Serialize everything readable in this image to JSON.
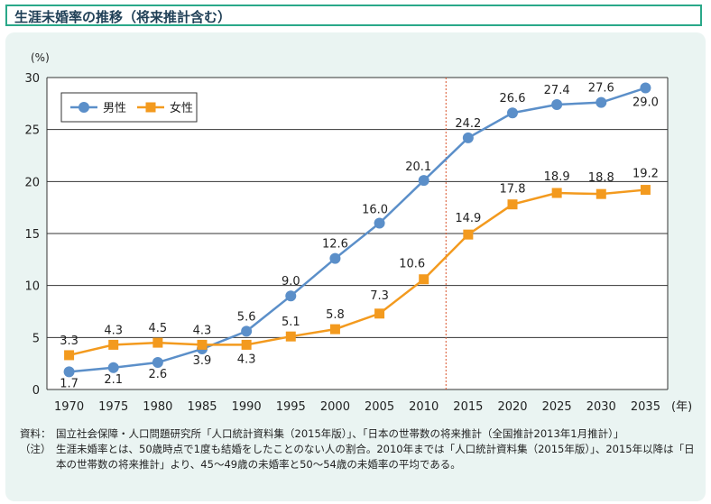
{
  "header": {
    "title": "生涯未婚率の推移（将来推計含む）"
  },
  "chart_data": {
    "type": "line",
    "title": "",
    "unit_label": "(%)",
    "x_unit": "(年)",
    "categories": [
      "1970",
      "1975",
      "1980",
      "1985",
      "1990",
      "1995",
      "2000",
      "2005",
      "2010",
      "2015",
      "2020",
      "2025",
      "2030",
      "2035"
    ],
    "ylim": [
      0,
      30
    ],
    "yticks": [
      0,
      5,
      10,
      15,
      20,
      25,
      30
    ],
    "grid": true,
    "legend_position": "top-left",
    "projection_start_after": "2010",
    "series": [
      {
        "name": "男性",
        "color": "#5b8fc9",
        "marker": "circle",
        "values": [
          1.7,
          2.1,
          2.6,
          3.9,
          5.6,
          9.0,
          12.6,
          16.0,
          20.1,
          24.2,
          26.6,
          27.4,
          27.6,
          29.0
        ],
        "labels": [
          "1.7",
          "2.1",
          "2.6",
          "3.9",
          "5.6",
          "9.0",
          "12.6",
          "16.0",
          "20.1",
          "24.2",
          "26.6",
          "27.4",
          "27.6",
          "29.0"
        ]
      },
      {
        "name": "女性",
        "color": "#f39a1e",
        "marker": "square",
        "values": [
          3.3,
          4.3,
          4.5,
          4.3,
          4.3,
          5.1,
          5.8,
          7.3,
          10.6,
          14.9,
          17.8,
          18.9,
          18.8,
          19.2
        ],
        "labels": [
          "3.3",
          "4.3",
          "4.5",
          "4.3",
          "4.3",
          "5.1",
          "5.8",
          "7.3",
          "10.6",
          "14.9",
          "17.8",
          "18.9",
          "18.8",
          "19.2"
        ]
      }
    ]
  },
  "notes": {
    "source_label": "資料：",
    "source_text": "国立社会保障・人口問題研究所「人口統計資料集（2015年版）」、「日本の世帯数の将来推計（全国推計2013年1月推計）」",
    "note_label": "（注）",
    "note_text": "生涯未婚率とは、50歳時点で1度も結婚をしたことのない人の割合。2010年までは「人口統計資料集（2015年版）」、2015年以降は「日本の世帯数の将来推計」より、45〜49歳の未婚率と50〜54歳の未婚率の平均である。"
  }
}
